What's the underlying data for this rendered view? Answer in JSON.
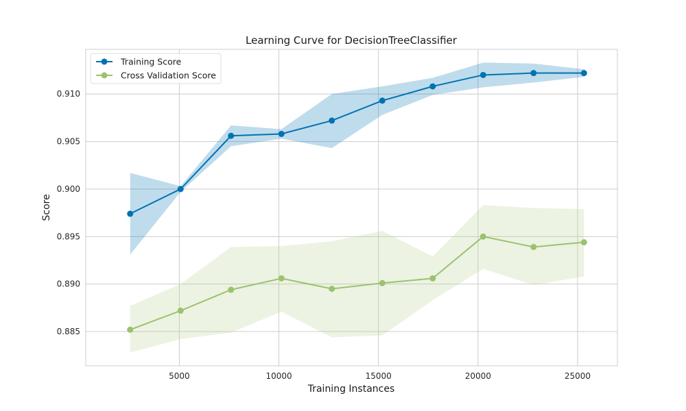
{
  "chart_data": {
    "type": "line",
    "title": "Learning Curve for DecisionTreeClassifier",
    "xlabel": "Training Instances",
    "ylabel": "Score",
    "xlim": [
      300,
      27000
    ],
    "ylim": [
      0.8814,
      0.9147
    ],
    "x": [
      2530,
      5063,
      7595,
      10127,
      12660,
      15192,
      17725,
      20257,
      22790,
      25322
    ],
    "xticks": [
      5000,
      10000,
      15000,
      20000,
      25000
    ],
    "xtick_labels": [
      "5000",
      "10000",
      "15000",
      "20000",
      "25000"
    ],
    "yticks": [
      0.885,
      0.89,
      0.895,
      0.9,
      0.905,
      0.91
    ],
    "ytick_labels": [
      "0.885",
      "0.890",
      "0.895",
      "0.900",
      "0.905",
      "0.910"
    ],
    "grid": true,
    "legend_position": "top-left",
    "series": [
      {
        "name": "Training Score",
        "color": "#0072b2",
        "band_color": "#0072b2",
        "values": [
          0.8974,
          0.9,
          0.9056,
          0.9058,
          0.9072,
          0.9093,
          0.9108,
          0.912,
          0.9122,
          0.9122
        ],
        "upper": [
          0.9017,
          0.9003,
          0.9067,
          0.9063,
          0.91,
          0.9108,
          0.9117,
          0.9133,
          0.9132,
          0.9126
        ],
        "lower": [
          0.8931,
          0.8997,
          0.9045,
          0.9053,
          0.9043,
          0.9078,
          0.9099,
          0.9107,
          0.9112,
          0.9118
        ]
      },
      {
        "name": "Cross Validation Score",
        "color": "#9bc26e",
        "band_color": "#b4ce8d",
        "values": [
          0.8852,
          0.8872,
          0.8894,
          0.8906,
          0.8895,
          0.8901,
          0.8906,
          0.895,
          0.8939,
          0.8944
        ],
        "upper": [
          0.8877,
          0.89,
          0.8939,
          0.894,
          0.8945,
          0.8956,
          0.8929,
          0.8983,
          0.898,
          0.8979
        ],
        "lower": [
          0.8828,
          0.8842,
          0.8849,
          0.8871,
          0.8844,
          0.8846,
          0.8883,
          0.8916,
          0.8899,
          0.8908
        ]
      }
    ]
  }
}
